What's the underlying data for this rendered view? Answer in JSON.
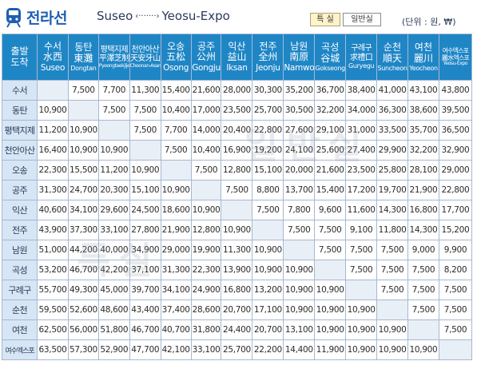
{
  "header": {
    "line_name": "전라선",
    "origin": "Suseo",
    "arrow": "‹·······›",
    "destination": "Yeosu-Expo",
    "legend_special": "특 실",
    "legend_normal": "일반실",
    "unit": "(단위 : 원, ₩)"
  },
  "watermarks": {
    "normal": "일반실",
    "special": "특실"
  },
  "table": {
    "corner": [
      "출발",
      "도착"
    ],
    "stations": [
      {
        "kr": "수서",
        "cn": "水西",
        "en": "Suseo"
      },
      {
        "kr": "동탄",
        "cn": "東灘",
        "en": "Dongtan"
      },
      {
        "kr": "평택지제",
        "cn": "平澤芝制",
        "en": "Pyeongtaekjije"
      },
      {
        "kr": "천안아산",
        "cn": "天安牙山",
        "en": "Cheonan-Asan"
      },
      {
        "kr": "오송",
        "cn": "五松",
        "en": "Osong"
      },
      {
        "kr": "공주",
        "cn": "公州",
        "en": "Gongju"
      },
      {
        "kr": "익산",
        "cn": "益山",
        "en": "Iksan"
      },
      {
        "kr": "전주",
        "cn": "全州",
        "en": "Jeonju"
      },
      {
        "kr": "남원",
        "cn": "南原",
        "en": "Namwon"
      },
      {
        "kr": "곡성",
        "cn": "谷城",
        "en": "Gokseong"
      },
      {
        "kr": "구례구",
        "cn": "求禮口",
        "en": "Guryegu"
      },
      {
        "kr": "순천",
        "cn": "順天",
        "en": "Suncheon"
      },
      {
        "kr": "여천",
        "cn": "麗川",
        "en": "Yeocheon"
      },
      {
        "kr": "여수엑스포",
        "cn": "麗水엑스포",
        "en": "Yeosu-Expo"
      }
    ],
    "rows": [
      [
        "",
        "7,500",
        "7,700",
        "11,300",
        "15,400",
        "21,600",
        "28,000",
        "30,300",
        "35,200",
        "36,700",
        "38,400",
        "41,000",
        "43,100",
        "43,800"
      ],
      [
        "10,900",
        "",
        "7,500",
        "7,500",
        "10,400",
        "17,000",
        "23,500",
        "25,700",
        "30,500",
        "32,200",
        "34,000",
        "36,300",
        "38,600",
        "39,500"
      ],
      [
        "11,200",
        "10,900",
        "",
        "7,500",
        "7,700",
        "14,000",
        "20,400",
        "22,800",
        "27,600",
        "29,100",
        "31,000",
        "33,500",
        "35,700",
        "36,500"
      ],
      [
        "16,400",
        "10,900",
        "10,900",
        "",
        "7,500",
        "10,400",
        "16,900",
        "19,200",
        "24,100",
        "25,600",
        "27,400",
        "29,900",
        "32,200",
        "32,900"
      ],
      [
        "22,300",
        "15,500",
        "11,200",
        "10,900",
        "",
        "7,500",
        "12,800",
        "15,100",
        "20,000",
        "21,600",
        "23,500",
        "25,800",
        "28,100",
        "29,000"
      ],
      [
        "31,300",
        "24,700",
        "20,300",
        "15,100",
        "10,900",
        "",
        "7,500",
        "8,800",
        "13,700",
        "15,400",
        "17,200",
        "19,700",
        "21,900",
        "22,800"
      ],
      [
        "40,600",
        "34,100",
        "29,600",
        "24,500",
        "18,600",
        "10,900",
        "",
        "7,500",
        "7,800",
        "9,600",
        "11,600",
        "14,300",
        "16,800",
        "17,700"
      ],
      [
        "43,900",
        "37,300",
        "33,100",
        "27,800",
        "21,900",
        "12,800",
        "10,900",
        "",
        "7,500",
        "7,500",
        "9,100",
        "11,800",
        "14,300",
        "15,200"
      ],
      [
        "51,000",
        "44,200",
        "40,000",
        "34,900",
        "29,000",
        "19,900",
        "11,300",
        "10,900",
        "",
        "7,500",
        "7,500",
        "7,500",
        "9,000",
        "9,900"
      ],
      [
        "53,200",
        "46,700",
        "42,200",
        "37,100",
        "31,300",
        "22,300",
        "13,900",
        "10,900",
        "10,900",
        "",
        "7,500",
        "7,500",
        "7,500",
        "8,200"
      ],
      [
        "55,700",
        "49,300",
        "45,000",
        "39,700",
        "34,100",
        "24,900",
        "16,800",
        "13,200",
        "10,900",
        "10,900",
        "",
        "7,500",
        "7,500",
        "7,500"
      ],
      [
        "59,500",
        "52,600",
        "48,600",
        "43,400",
        "37,400",
        "28,600",
        "20,700",
        "17,100",
        "10,900",
        "10,900",
        "10,900",
        "",
        "7,500",
        "7,500"
      ],
      [
        "62,500",
        "56,000",
        "51,800",
        "46,700",
        "40,700",
        "31,800",
        "24,400",
        "20,700",
        "13,100",
        "10,900",
        "10,900",
        "10,900",
        "",
        "7,500"
      ],
      [
        "63,500",
        "57,300",
        "52,900",
        "47,700",
        "42,100",
        "33,100",
        "25,700",
        "22,200",
        "14,400",
        "11,900",
        "10,900",
        "10,900",
        "10,900",
        ""
      ]
    ]
  }
}
